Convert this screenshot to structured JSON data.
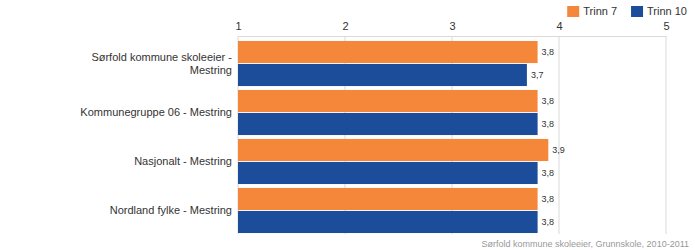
{
  "chart_data": {
    "type": "bar",
    "orientation": "horizontal",
    "categories": [
      "Sørfold kommune skoleeier - Mestring",
      "Kommunegruppe 06 - Mestring",
      "Nasjonalt - Mestring",
      "Nordland fylke - Mestring"
    ],
    "series": [
      {
        "name": "Trinn 7",
        "color": "#f5873a",
        "values": [
          3.8,
          3.8,
          3.9,
          3.8
        ],
        "value_labels": [
          "3,8",
          "3,8",
          "3,9",
          "3,8"
        ]
      },
      {
        "name": "Trinn 10",
        "color": "#1b4d9b",
        "values": [
          3.7,
          3.8,
          3.8,
          3.8
        ],
        "value_labels": [
          "3,7",
          "3,8",
          "3,8",
          "3,8"
        ]
      }
    ],
    "xlim": [
      1,
      5
    ],
    "xticks": [
      1,
      2,
      3,
      4,
      5
    ],
    "grid": true,
    "legend": "top-right",
    "data_labels": true,
    "caption": "Sørfold kommune skoleeier, Grunnskole, 2010-2011"
  }
}
